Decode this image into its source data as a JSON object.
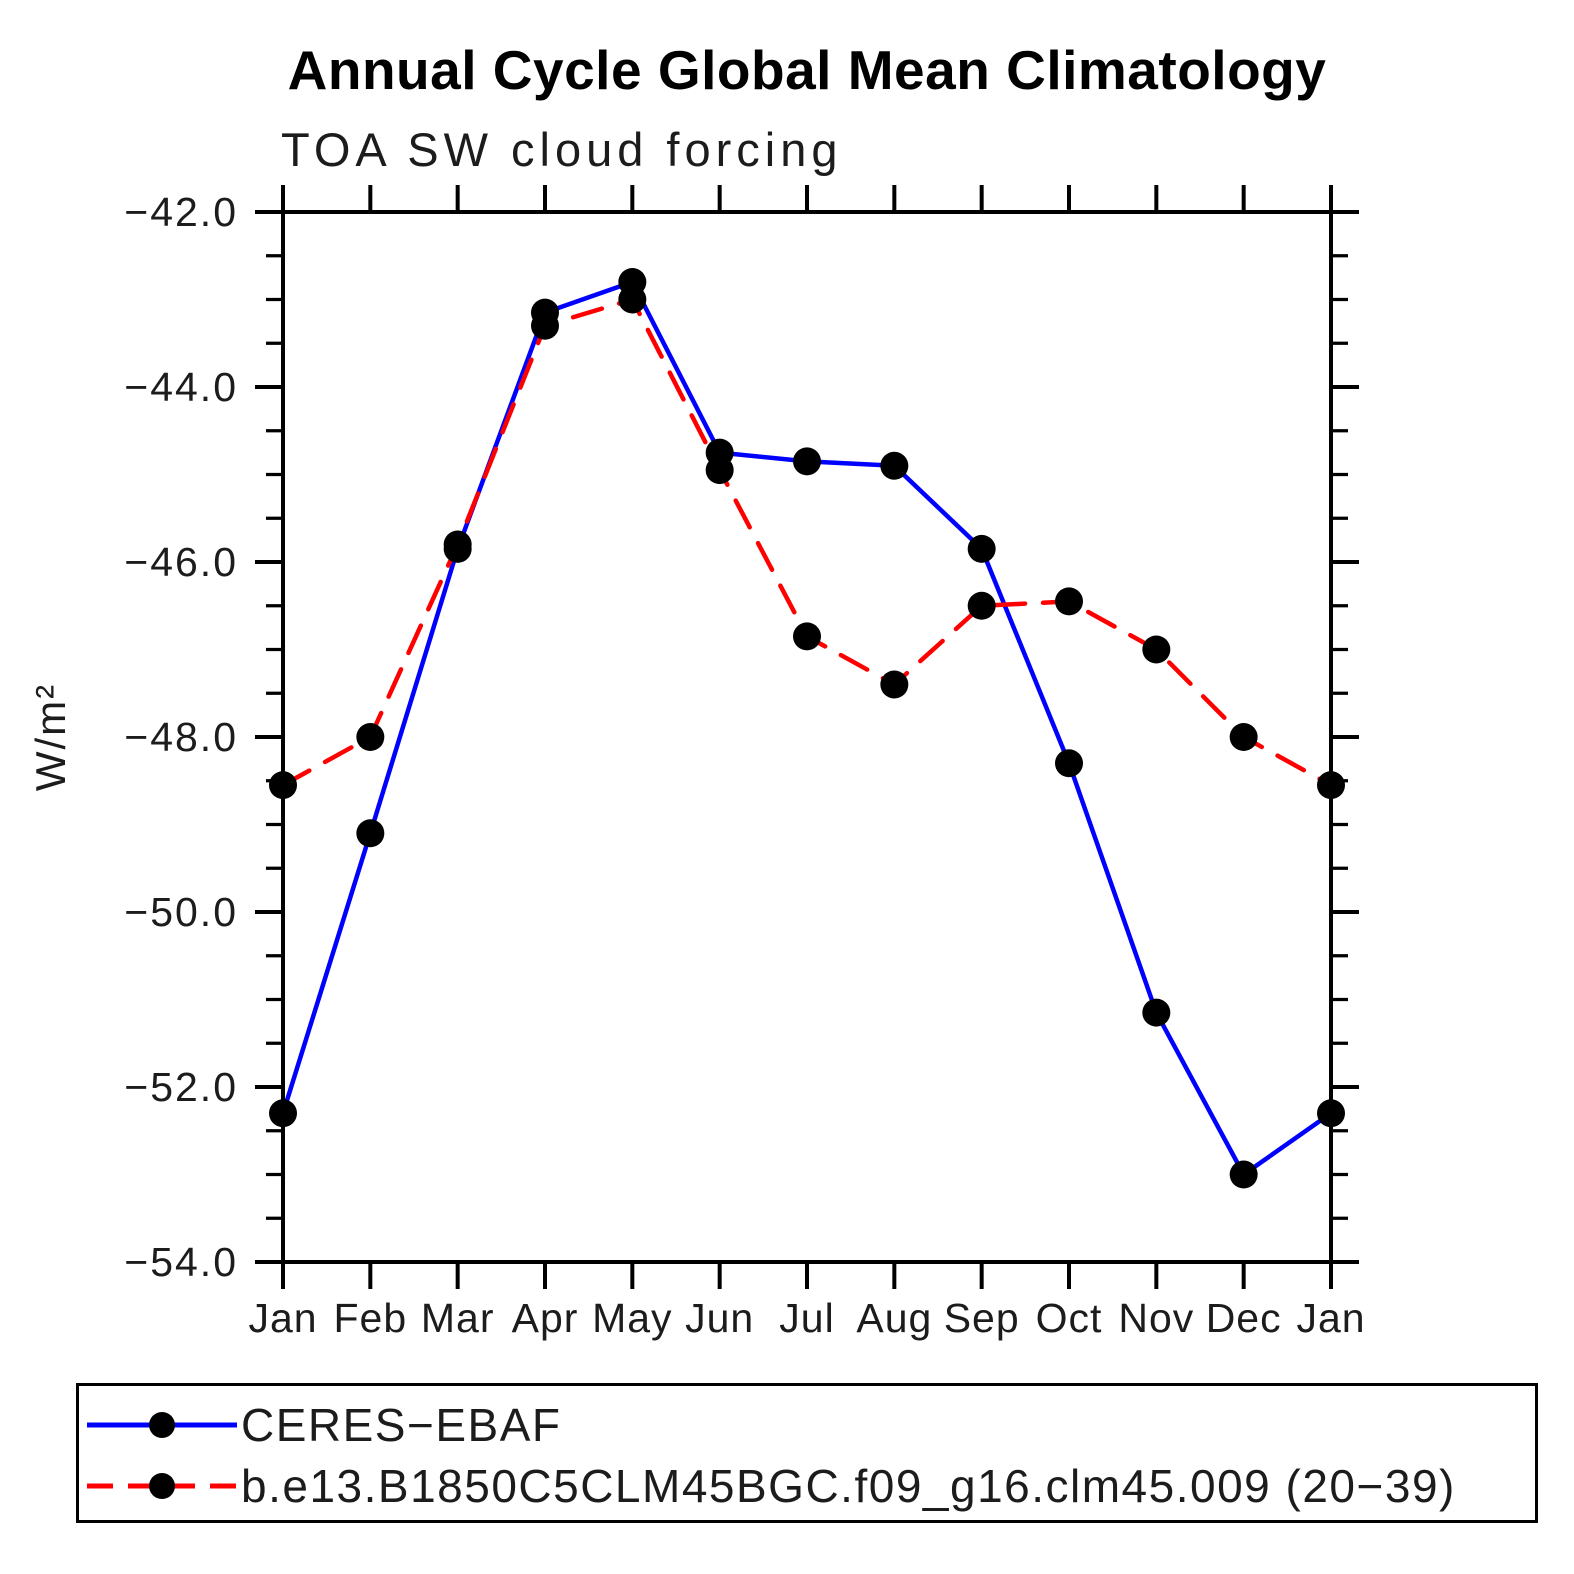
{
  "title": "Annual Cycle Global Mean Climatology",
  "subtitle": "TOA SW cloud forcing",
  "chart_data": {
    "type": "line",
    "categories": [
      "Jan",
      "Feb",
      "Mar",
      "Apr",
      "May",
      "Jun",
      "Jul",
      "Aug",
      "Sep",
      "Oct",
      "Nov",
      "Dec",
      "Jan"
    ],
    "series": [
      {
        "name": "CERES−EBAF",
        "color": "#0000ff",
        "line_style": "solid",
        "marker": "filled-circle",
        "values": [
          -52.3,
          -49.1,
          -45.85,
          -43.15,
          -42.8,
          -44.75,
          -44.85,
          -44.9,
          -45.85,
          -48.3,
          -51.15,
          -53.0,
          -52.3
        ]
      },
      {
        "name": "b.e13.B1850C5CLM45BGC.f09_g16.clm45.009 (20−39)",
        "color": "#ff0000",
        "line_style": "dashed",
        "marker": "filled-circle",
        "values": [
          -48.55,
          -48.0,
          -45.8,
          -43.3,
          -43.0,
          -44.95,
          -46.85,
          -47.4,
          -46.5,
          -46.45,
          -47.0,
          -48.0,
          -48.55
        ]
      }
    ],
    "xlabel": "",
    "ylabel": "W/m²",
    "ylim": [
      -54.0,
      -42.0
    ],
    "ytick_major": 2.0,
    "ytick_minor": 0.5,
    "ytick_labels": [
      "−42.0",
      "−44.0",
      "−46.0",
      "−48.0",
      "−50.0",
      "−52.0",
      "−54.0"
    ],
    "grid": false,
    "legend_position": "bottom",
    "marker_color": "#000000",
    "axis_color": "#000000"
  }
}
